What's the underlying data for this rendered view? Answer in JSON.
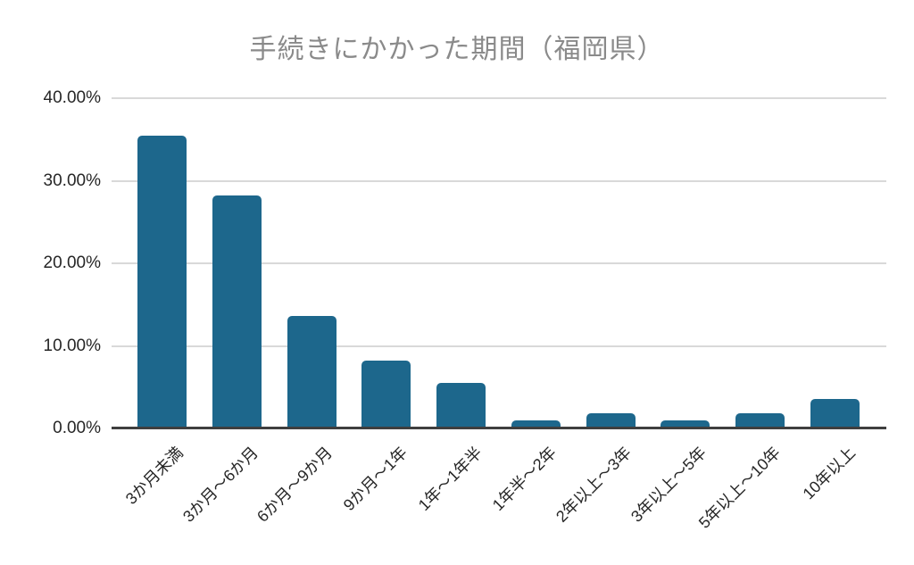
{
  "chart_data": {
    "type": "bar",
    "title": "手続きにかかった期間（福岡県）",
    "categories": [
      "3か月未満",
      "3か月～6か月",
      "6か月～9か月",
      "9か月～1年",
      "1年～1年半",
      "1年半～2年",
      "2年以上～3年",
      "3年以上～5年",
      "5年以上～10年",
      "10年以上"
    ],
    "values": [
      35.3,
      28.1,
      13.5,
      8.1,
      5.4,
      0.9,
      1.7,
      0.9,
      1.7,
      3.5
    ],
    "xlabel": "",
    "ylabel": "",
    "ylim": [
      0,
      40
    ],
    "yticks": [
      {
        "value": 0,
        "label": "0.00%"
      },
      {
        "value": 10,
        "label": "10.00%"
      },
      {
        "value": 20,
        "label": "20.00%"
      },
      {
        "value": 30,
        "label": "30.00%"
      },
      {
        "value": 40,
        "label": "40.00%"
      }
    ],
    "grid": "horizontal",
    "legend": "none",
    "colors": {
      "bar": "#1d678c",
      "title": "#8a8a8a",
      "axis_text": "#262626",
      "gridline": "#d9d9d9",
      "axis_line": "#3f3f3f",
      "background": "#ffffff"
    }
  }
}
